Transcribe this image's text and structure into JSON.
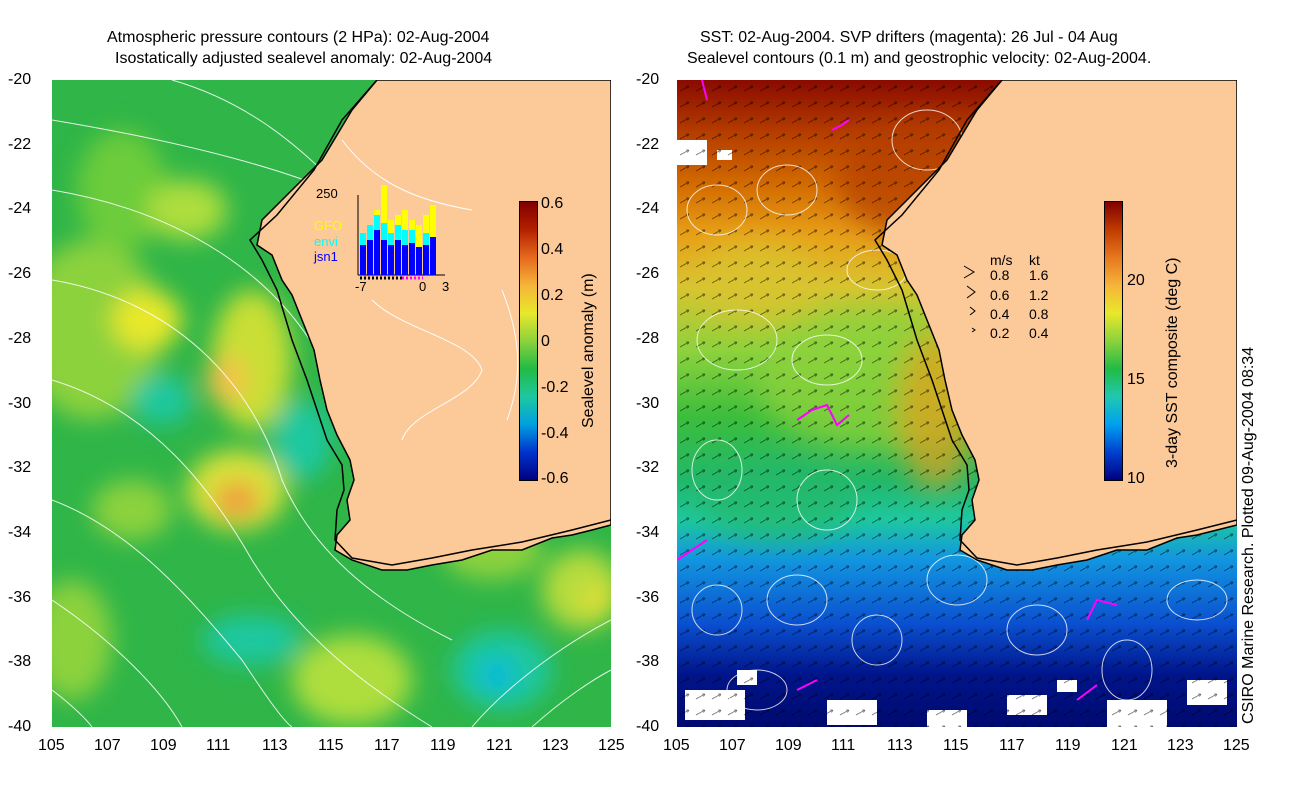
{
  "left_panel": {
    "title_line1": "Atmospheric pressure contours (2 HPa): 02-Aug-2004",
    "title_line2": "Isostatically adjusted sealevel anomaly: 02-Aug-2004",
    "colorbar": {
      "label": "Sealevel anomaly (m)",
      "ticks": [
        "0.6",
        "0.4",
        "0.2",
        "0",
        "-0.2",
        "-0.4",
        "-0.6"
      ],
      "colors": [
        "#000080",
        "#0033cc",
        "#00a0e0",
        "#1ec8a0",
        "#22bb44",
        "#8cd23c",
        "#e8e82a",
        "#f6b43a",
        "#e66a1e",
        "#b42000",
        "#800000"
      ]
    },
    "inset": {
      "y_max_label": "250",
      "x_labels": [
        "-7",
        "0",
        "3"
      ],
      "satellites": [
        {
          "name": "GFO",
          "color": "#ffff00"
        },
        {
          "name": "envi",
          "color": "#00ffff"
        },
        {
          "name": "jsn1",
          "color": "#0000ff"
        }
      ]
    }
  },
  "right_panel": {
    "title_line1": "SST: 02-Aug-2004. SVP drifters (magenta): 26 Jul - 04 Aug",
    "title_line2": "Sealevel contours (0.1 m) and geostrophic velocity: 02-Aug-2004.",
    "colorbar": {
      "label": "3-day SST composite (deg C)",
      "ticks": [
        "20",
        "15",
        "10"
      ],
      "colors": [
        "#000080",
        "#0040d0",
        "#00a0f0",
        "#20c8b0",
        "#22bb44",
        "#8cd23c",
        "#e8e82a",
        "#f6b43a",
        "#e6781e",
        "#c03c00",
        "#800000"
      ]
    },
    "velocity_legend": {
      "header": [
        "m/s",
        "kt"
      ],
      "rows": [
        [
          "0.8",
          "1.6"
        ],
        [
          "0.6",
          "1.2"
        ],
        [
          "0.4",
          "0.8"
        ],
        [
          "0.2",
          "0.4"
        ]
      ]
    }
  },
  "axes": {
    "lat_labels": [
      "-20",
      "-22",
      "-24",
      "-26",
      "-28",
      "-30",
      "-32",
      "-34",
      "-36",
      "-38",
      "-40"
    ],
    "lon_labels": [
      "105",
      "107",
      "109",
      "111",
      "113",
      "115",
      "117",
      "119",
      "121",
      "123",
      "125"
    ]
  },
  "colors": {
    "land": "#fcc998",
    "coast": "#000000",
    "contour": "#ffffff",
    "drifter": "#ff00ff"
  },
  "credit": "CSIRO Marine Research. Plotted 09-Aug-2004 08:34"
}
